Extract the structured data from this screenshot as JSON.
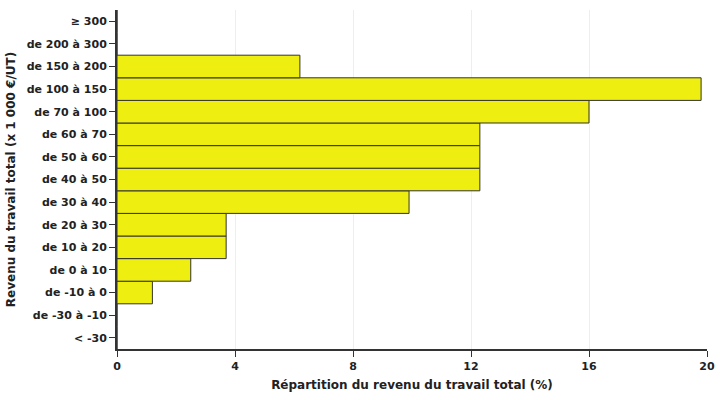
{
  "chart_data": {
    "type": "bar",
    "orientation": "horizontal",
    "categories": [
      "< -30",
      "de -30 à -10",
      "de -10 à 0",
      "de 0 à 10",
      "de 10 à 20",
      "de 20 à 30",
      "de 30 à 40",
      "de 40 à 50",
      "de 50 à 60",
      "de 60 à 70",
      "de 70 à 100",
      "de 100 à 150",
      "de 150 à 200",
      "de 200 à 300",
      "≥ 300"
    ],
    "values": [
      0,
      0,
      1.2,
      2.5,
      3.7,
      3.7,
      9.9,
      12.3,
      12.3,
      12.3,
      16.0,
      19.8,
      6.2,
      0,
      0
    ],
    "color": "#eeee11",
    "x_label": "Répartition du revenu du travail total (%)",
    "y_label": "Revenu du travail total (x 1 000 €/UT)",
    "xlim": [
      0,
      20
    ],
    "xticks": [
      0,
      4,
      8,
      12,
      16,
      20
    ],
    "grid": true
  }
}
